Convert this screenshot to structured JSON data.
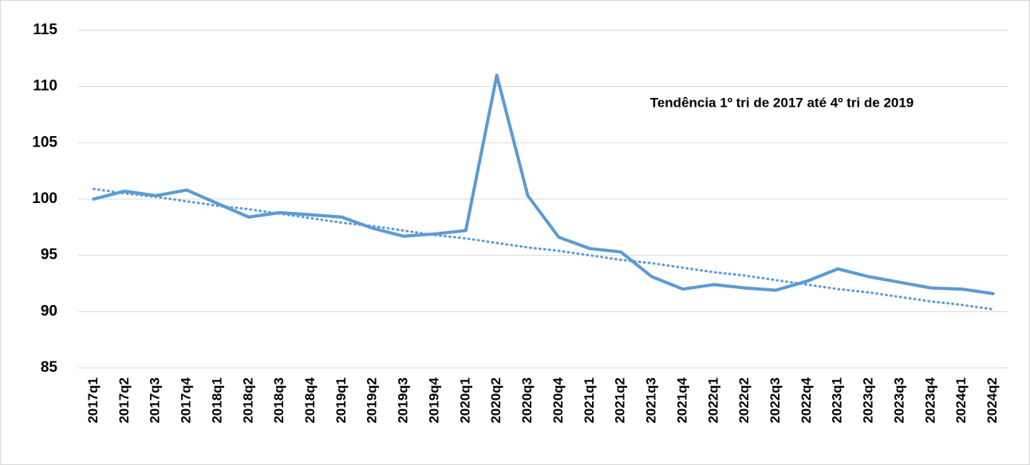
{
  "chart_data": {
    "type": "line",
    "annotation": "Tendência 1º tri de 2017 até 4º tri de 2019",
    "categories": [
      "2017q1",
      "2017q2",
      "2017q3",
      "2017q4",
      "2018q1",
      "2018q2",
      "2018q3",
      "2018q4",
      "2019q1",
      "2019q2",
      "2019q3",
      "2019q4",
      "2020q1",
      "2020q2",
      "2020q3",
      "2020q4",
      "2021q1",
      "2021q2",
      "2021q3",
      "2021q4",
      "2022q1",
      "2022q2",
      "2022q3",
      "2022q4",
      "2023q1",
      "2023q2",
      "2023q3",
      "2023q4",
      "2024q1",
      "2024q2"
    ],
    "series": [
      {
        "color": "#5b9bd5",
        "style": "solid",
        "values": [
          100,
          100.7,
          100.3,
          100.8,
          99.6,
          98.4,
          98.8,
          98.6,
          98.4,
          97.4,
          96.7,
          96.9,
          97.2,
          111,
          100.3,
          96.6,
          95.6,
          95.3,
          93.1,
          92.0,
          92.4,
          92.1,
          91.9,
          92.7,
          93.8,
          93.1,
          92.6,
          92.1,
          92.0,
          91.6
        ]
      },
      {
        "color": "#5b9bd5",
        "style": "dotted",
        "values": [
          100.9,
          100.5,
          100.2,
          99.8,
          99.4,
          99.1,
          98.7,
          98.3,
          97.9,
          97.6,
          97.2,
          96.8,
          96.5,
          96.1,
          95.7,
          95.4,
          95.0,
          94.6,
          94.3,
          93.9,
          93.5,
          93.2,
          92.8,
          92.4,
          92.0,
          91.7,
          91.3,
          90.9,
          90.6,
          90.2
        ]
      }
    ],
    "ylim": [
      85,
      115
    ],
    "yticks": [
      85,
      90,
      95,
      100,
      105,
      110,
      115
    ],
    "grid": true
  }
}
